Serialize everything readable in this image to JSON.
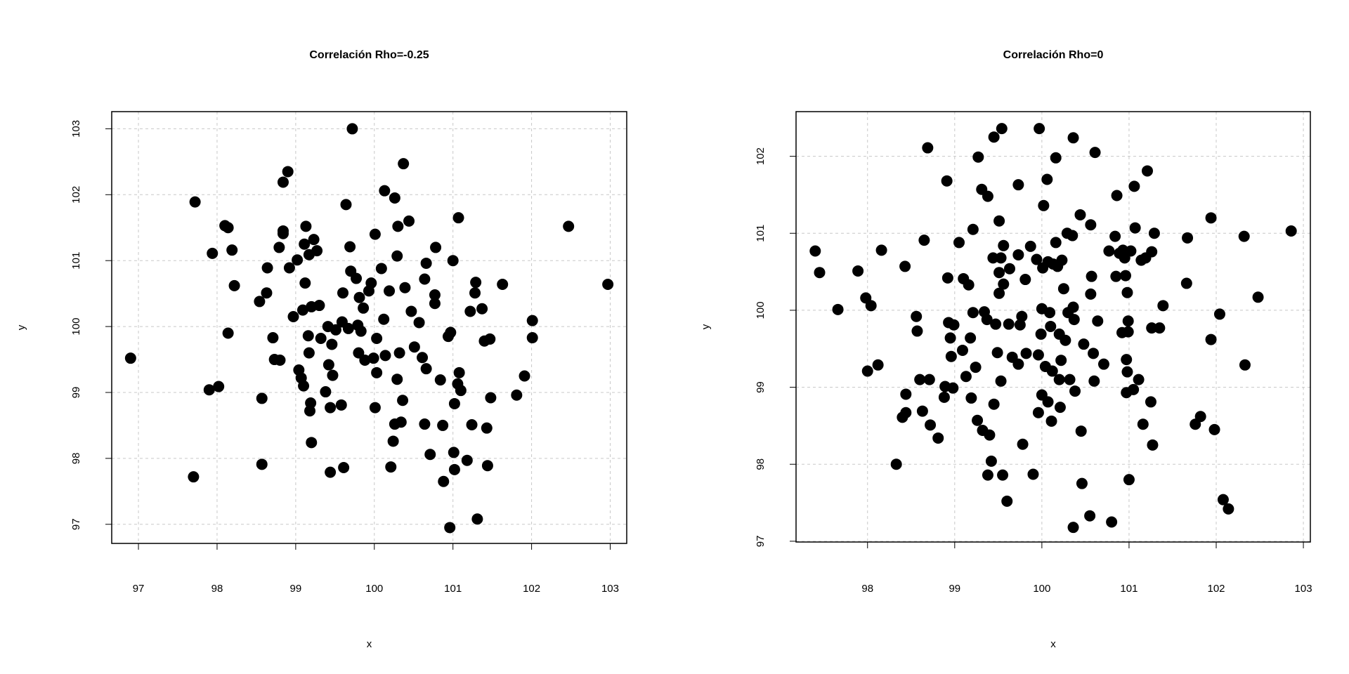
{
  "chart_data": [
    {
      "type": "scatter",
      "title": "Correlación Rho=-0.25",
      "xlabel": "x",
      "ylabel": "y",
      "color": "#000000",
      "grid": true,
      "xlim": [
        96.66,
        103.21
      ],
      "ylim": [
        96.71,
        103.26
      ],
      "xticks": [
        97,
        98,
        99,
        100,
        101,
        102,
        103
      ],
      "yticks": [
        97,
        98,
        99,
        100,
        101,
        102,
        103
      ],
      "x": [
        96.9,
        97.72,
        97.7,
        97.94,
        97.9,
        98.02,
        98.1,
        98.14,
        98.19,
        98.14,
        98.22,
        98.57,
        98.57,
        98.54,
        98.63,
        98.64,
        98.71,
        98.73,
        98.8,
        98.79,
        98.84,
        98.84,
        98.84,
        98.9,
        98.92,
        98.97,
        99.02,
        99.04,
        99.07,
        99.1,
        99.09,
        99.13,
        99.11,
        99.12,
        99.17,
        99.16,
        99.17,
        99.19,
        99.18,
        99.2,
        99.2,
        99.23,
        99.27,
        99.3,
        99.32,
        99.38,
        99.42,
        99.44,
        99.44,
        99.46,
        99.47,
        99.41,
        99.51,
        99.58,
        99.61,
        99.64,
        99.6,
        99.59,
        99.69,
        99.7,
        99.72,
        99.67,
        99.77,
        99.79,
        99.8,
        99.81,
        99.88,
        99.83,
        99.86,
        99.93,
        99.96,
        99.99,
        100.01,
        100.03,
        100.01,
        100.03,
        100.09,
        100.13,
        100.12,
        100.14,
        100.19,
        100.21,
        100.26,
        100.24,
        100.26,
        100.29,
        100.3,
        100.29,
        100.32,
        100.34,
        100.37,
        100.36,
        100.39,
        100.44,
        100.47,
        100.51,
        100.57,
        100.61,
        100.64,
        100.66,
        100.64,
        100.66,
        100.71,
        100.77,
        100.77,
        100.78,
        100.84,
        100.87,
        100.88,
        100.94,
        100.96,
        101.0,
        101.02,
        101.01,
        101.02,
        101.07,
        101.06,
        101.1,
        101.08,
        101.18,
        101.22,
        101.24,
        101.29,
        101.28,
        101.31,
        101.37,
        101.4,
        101.43,
        101.44,
        101.47,
        101.48,
        101.63,
        101.81,
        101.91,
        102.01,
        102.01,
        102.47,
        102.97,
        100.97
      ],
      "y": [
        99.52,
        101.89,
        97.72,
        101.11,
        99.04,
        99.09,
        101.53,
        101.5,
        101.16,
        99.9,
        100.62,
        98.91,
        97.91,
        100.38,
        100.51,
        100.89,
        99.83,
        99.5,
        99.49,
        101.2,
        101.45,
        101.41,
        102.19,
        102.35,
        100.89,
        100.15,
        101.01,
        99.34,
        99.22,
        99.1,
        100.25,
        101.52,
        101.25,
        100.66,
        101.09,
        99.86,
        99.6,
        98.84,
        98.72,
        98.24,
        100.3,
        101.32,
        101.15,
        100.32,
        99.82,
        99.01,
        99.42,
        98.77,
        97.79,
        99.73,
        99.26,
        100.0,
        99.95,
        98.81,
        97.86,
        101.85,
        100.51,
        100.07,
        101.21,
        100.84,
        103.0,
        99.97,
        100.73,
        100.02,
        99.6,
        100.44,
        99.49,
        99.93,
        100.28,
        100.54,
        100.66,
        99.52,
        101.4,
        99.82,
        98.77,
        99.3,
        100.88,
        102.06,
        100.11,
        99.56,
        100.54,
        97.87,
        101.95,
        98.26,
        98.52,
        101.07,
        101.52,
        99.2,
        99.6,
        98.55,
        102.47,
        98.88,
        100.59,
        101.6,
        100.23,
        99.69,
        100.06,
        99.53,
        98.52,
        100.96,
        100.72,
        99.36,
        98.06,
        100.48,
        100.35,
        101.2,
        99.19,
        98.5,
        97.65,
        99.85,
        96.95,
        101.0,
        98.83,
        98.09,
        97.83,
        101.65,
        99.13,
        99.03,
        99.3,
        97.97,
        100.23,
        98.51,
        100.67,
        100.51,
        97.08,
        100.27,
        99.78,
        98.46,
        97.89,
        99.81,
        98.92,
        100.64,
        98.96,
        99.25,
        99.83,
        100.09,
        101.52,
        100.64,
        99.91
      ]
    },
    {
      "type": "scatter",
      "title": "Correlación Rho=0",
      "xlabel": "x",
      "ylabel": "y",
      "color": "#000000",
      "grid": true,
      "xlim": [
        97.18,
        103.08
      ],
      "ylim": [
        96.99,
        102.58
      ],
      "xticks": [
        98,
        99,
        100,
        101,
        102,
        103
      ],
      "yticks": [
        97,
        98,
        99,
        100,
        101,
        102
      ],
      "x": [
        97.4,
        97.45,
        97.66,
        97.89,
        97.98,
        98.04,
        98.0,
        98.12,
        98.16,
        98.33,
        98.4,
        98.44,
        98.43,
        98.44,
        98.56,
        98.57,
        98.6,
        98.63,
        98.65,
        98.69,
        98.71,
        98.72,
        98.81,
        98.88,
        98.91,
        98.89,
        98.92,
        98.93,
        98.95,
        98.96,
        98.98,
        98.99,
        99.05,
        99.09,
        99.1,
        99.13,
        99.16,
        99.18,
        99.19,
        99.21,
        99.21,
        99.24,
        99.26,
        99.27,
        99.31,
        99.32,
        99.34,
        99.38,
        99.37,
        99.38,
        99.4,
        99.42,
        99.45,
        99.44,
        99.45,
        99.47,
        99.49,
        99.51,
        99.51,
        99.51,
        99.53,
        99.54,
        99.53,
        99.55,
        99.56,
        99.56,
        99.6,
        99.63,
        99.62,
        99.66,
        99.73,
        99.73,
        99.73,
        99.75,
        99.77,
        99.78,
        99.81,
        99.82,
        99.87,
        99.9,
        99.94,
        99.96,
        99.96,
        99.97,
        99.99,
        100.0,
        100.0,
        100.01,
        100.02,
        100.04,
        100.06,
        100.07,
        100.07,
        100.09,
        100.1,
        100.11,
        100.12,
        100.13,
        100.16,
        100.16,
        100.18,
        100.2,
        100.2,
        100.21,
        100.22,
        100.23,
        100.25,
        100.27,
        100.29,
        100.3,
        100.32,
        100.36,
        100.35,
        100.36,
        100.37,
        100.36,
        100.38,
        100.44,
        100.45,
        100.46,
        100.48,
        100.55,
        100.56,
        100.57,
        100.56,
        100.59,
        100.6,
        100.61,
        100.64,
        100.71,
        100.77,
        100.8,
        100.84,
        100.85,
        100.86,
        100.89,
        100.92,
        100.93,
        100.95,
        100.96,
        100.97,
        100.97,
        100.98,
        100.98,
        100.99,
        100.99,
        101.0,
        101.02,
        101.05,
        101.06,
        101.07,
        101.11,
        101.14,
        101.16,
        101.19,
        101.21,
        101.25,
        101.26,
        101.26,
        101.27,
        101.29,
        101.35,
        101.39,
        101.66,
        101.67,
        101.76,
        101.82,
        101.94,
        101.94,
        101.98,
        102.04,
        102.08,
        102.14,
        102.32,
        102.33,
        102.48,
        102.86
      ],
      "y": [
        100.77,
        100.49,
        100.01,
        100.51,
        100.16,
        100.06,
        99.21,
        99.29,
        100.78,
        98.0,
        98.61,
        98.67,
        100.57,
        98.91,
        99.92,
        99.73,
        99.1,
        98.69,
        100.91,
        102.11,
        99.1,
        98.51,
        98.34,
        98.87,
        101.68,
        99.01,
        100.42,
        99.84,
        99.64,
        99.4,
        98.99,
        99.81,
        100.88,
        99.48,
        100.41,
        99.14,
        100.33,
        99.64,
        98.86,
        101.05,
        99.97,
        99.26,
        98.57,
        101.99,
        101.57,
        98.44,
        99.98,
        101.48,
        99.88,
        97.86,
        98.38,
        98.04,
        98.78,
        100.68,
        102.25,
        99.82,
        99.45,
        101.16,
        100.49,
        100.22,
        100.68,
        102.36,
        99.08,
        97.86,
        100.84,
        100.34,
        97.52,
        100.54,
        99.82,
        99.39,
        101.63,
        100.72,
        99.3,
        99.81,
        99.92,
        98.26,
        100.4,
        99.44,
        100.83,
        97.87,
        100.66,
        99.42,
        98.67,
        102.36,
        99.69,
        100.02,
        98.9,
        100.55,
        101.36,
        99.27,
        101.7,
        100.63,
        98.81,
        99.97,
        99.79,
        98.56,
        99.21,
        100.6,
        101.98,
        100.88,
        100.57,
        99.69,
        99.1,
        98.74,
        99.35,
        100.65,
        100.28,
        99.61,
        101.0,
        99.97,
        99.1,
        102.24,
        100.97,
        100.04,
        99.88,
        97.18,
        98.95,
        101.24,
        98.43,
        97.75,
        99.56,
        97.33,
        101.11,
        100.44,
        100.21,
        99.44,
        99.08,
        102.05,
        99.86,
        99.3,
        100.77,
        97.25,
        100.96,
        100.44,
        101.49,
        100.74,
        99.71,
        100.78,
        100.68,
        100.45,
        98.93,
        99.36,
        100.23,
        99.2,
        99.86,
        99.72,
        97.8,
        100.77,
        98.97,
        101.61,
        101.07,
        99.1,
        100.65,
        98.52,
        100.68,
        101.81,
        98.81,
        100.76,
        99.77,
        98.25,
        101.0,
        99.77,
        100.06,
        100.35,
        100.94,
        98.52,
        98.62,
        99.62,
        101.2,
        98.45,
        99.95,
        97.54,
        97.42,
        100.96,
        99.29,
        100.17,
        101.03
      ]
    }
  ]
}
